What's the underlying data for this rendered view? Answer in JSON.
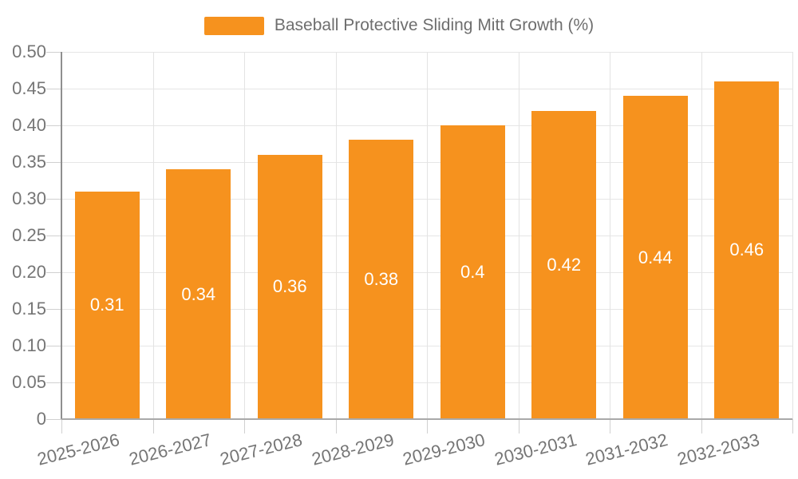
{
  "legend": {
    "label": "Baseball Protective Sliding Mitt Growth (%)",
    "swatch_color": "#F6921E"
  },
  "chart_data": {
    "type": "bar",
    "title": "Baseball Protective Sliding Mitt Growth (%)",
    "xlabel": "",
    "ylabel": "",
    "categories": [
      "2025-2026",
      "2026-2027",
      "2027-2028",
      "2028-2029",
      "2029-2030",
      "2030-2031",
      "2031-2032",
      "2032-2033"
    ],
    "values": [
      0.31,
      0.34,
      0.36,
      0.38,
      0.4,
      0.42,
      0.44,
      0.46
    ],
    "value_labels": [
      "0.31",
      "0.34",
      "0.36",
      "0.38",
      "0.4",
      "0.42",
      "0.44",
      "0.46"
    ],
    "ylim": [
      0,
      0.5
    ],
    "ytick_values": [
      0,
      0.05,
      0.1,
      0.15,
      0.2,
      0.25,
      0.3,
      0.35,
      0.4,
      0.45,
      0.5
    ],
    "ytick_labels": [
      "0",
      "0.05",
      "0.10",
      "0.15",
      "0.20",
      "0.25",
      "0.30",
      "0.35",
      "0.40",
      "0.45",
      "0.50"
    ],
    "grid": true,
    "legend_position": "top-center",
    "bar_color": "#F6921E",
    "bar_label_color": "#ffffff",
    "axis_text_color": "#757575",
    "grid_color": "#e6e6e6",
    "axis_line_color": "#8f8f8f"
  }
}
